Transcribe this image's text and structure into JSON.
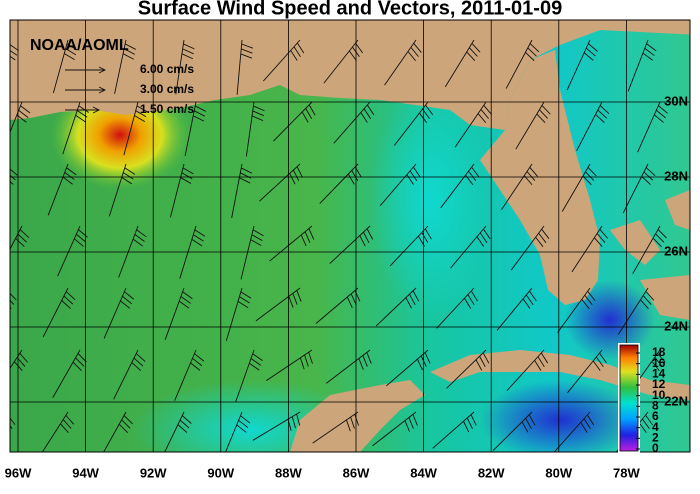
{
  "title": "Surface Wind Speed and Vectors, 2011-01-09",
  "agency": "NOAA/AOML",
  "vector_key": [
    "6.00 cm/s",
    "3.00 cm/s",
    "1.50 cm/s"
  ],
  "lon_labels": [
    "96W",
    "94W",
    "92W",
    "90W",
    "88W",
    "86W",
    "84W",
    "82W",
    "80W",
    "78W"
  ],
  "lat_labels": [
    "30N",
    "28N",
    "26N",
    "24N",
    "22N"
  ],
  "colorbar": {
    "ticks": [
      0,
      2,
      4,
      6,
      8,
      10,
      12,
      14,
      16,
      18
    ]
  }
}
